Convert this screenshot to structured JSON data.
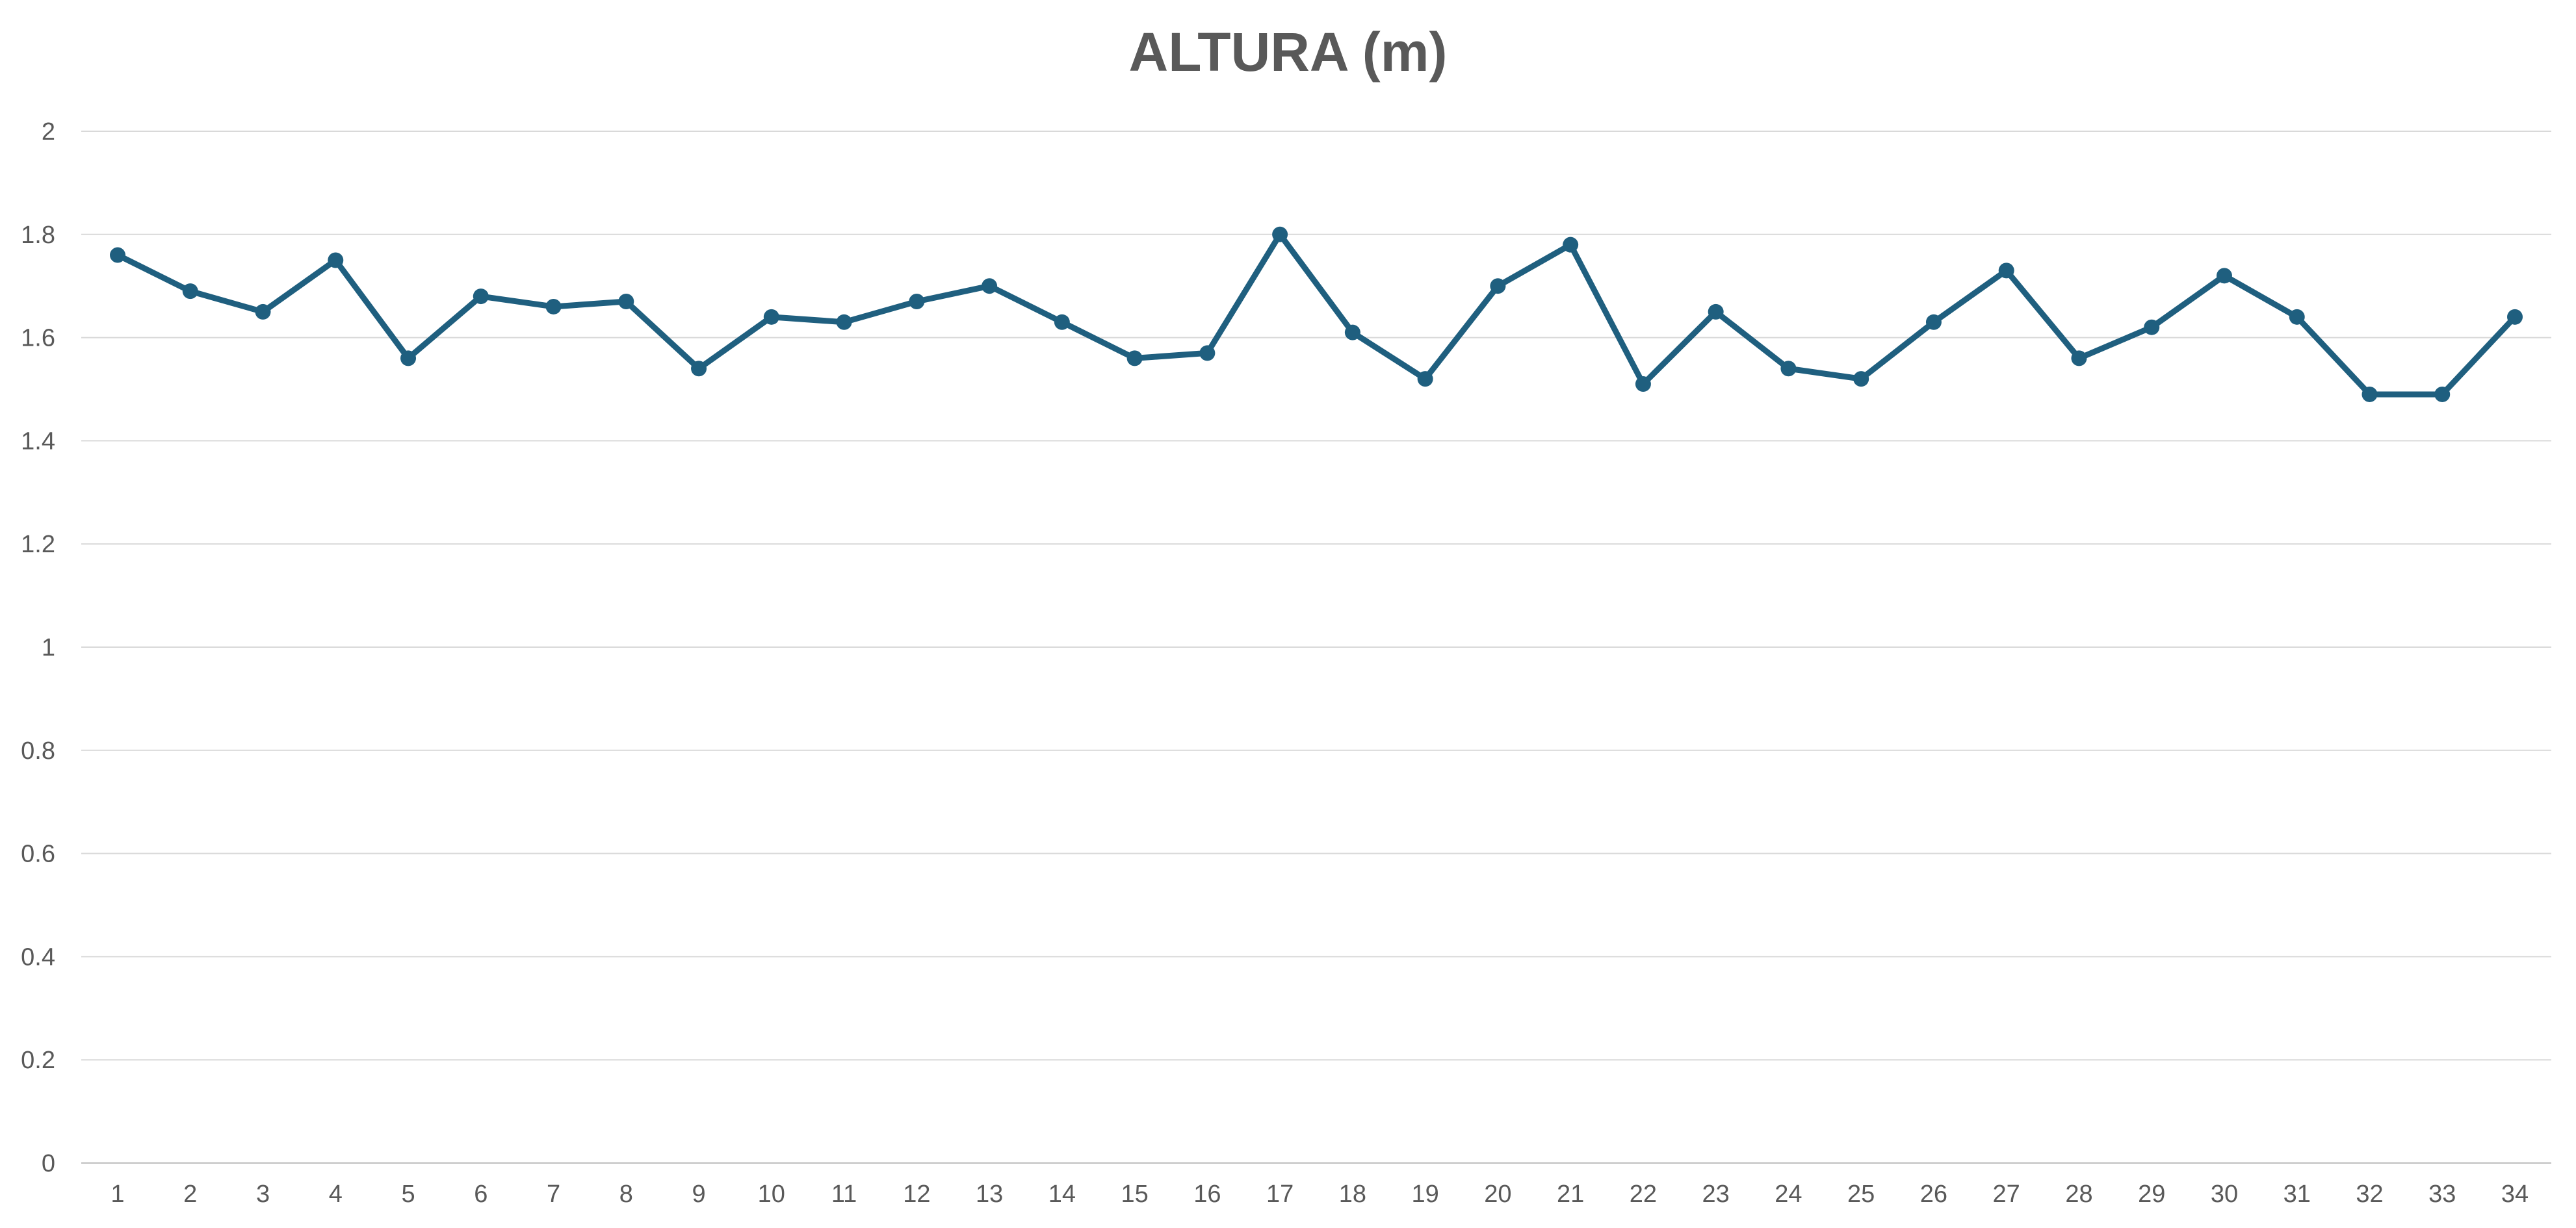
{
  "chart_data": {
    "type": "line",
    "title": "ALTURA (m)",
    "xlabel": "",
    "ylabel": "",
    "categories": [
      "1",
      "2",
      "3",
      "4",
      "5",
      "6",
      "7",
      "8",
      "9",
      "10",
      "11",
      "12",
      "13",
      "14",
      "15",
      "16",
      "17",
      "18",
      "19",
      "20",
      "21",
      "22",
      "23",
      "24",
      "25",
      "26",
      "27",
      "28",
      "29",
      "30",
      "31",
      "32",
      "33",
      "34"
    ],
    "series": [
      {
        "values": [
          1.76,
          1.69,
          1.65,
          1.75,
          1.56,
          1.68,
          1.66,
          1.67,
          1.54,
          1.64,
          1.63,
          1.67,
          1.7,
          1.63,
          1.56,
          1.57,
          1.8,
          1.61,
          1.52,
          1.7,
          1.78,
          1.51,
          1.65,
          1.54,
          1.52,
          1.63,
          1.73,
          1.56,
          1.62,
          1.72,
          1.64,
          1.49,
          1.49,
          1.64
        ],
        "color": "#1f5f7f"
      }
    ],
    "ylim": [
      0,
      2
    ],
    "yticks": [
      "0",
      "0.2",
      "0.4",
      "0.6",
      "0.8",
      "1",
      "1.2",
      "1.4",
      "1.6",
      "1.8",
      "2"
    ],
    "grid": true,
    "legend": "none",
    "gridline_color": "#d9d9d9",
    "axis_line_color": "#bfbfbf"
  }
}
